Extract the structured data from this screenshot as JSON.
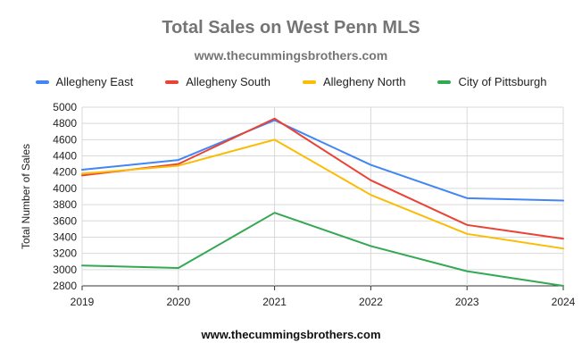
{
  "chart_data": {
    "type": "line",
    "title": "Total Sales on West Penn MLS",
    "subtitle": "www.thecummingsbrothers.com",
    "xlabel": "www.thecummingsbrothers.com",
    "ylabel": "Total Number of Sales",
    "categories": [
      "2019",
      "2020",
      "2021",
      "2022",
      "2023",
      "2024"
    ],
    "ylim": [
      2800,
      5000
    ],
    "yticks": [
      "2800",
      "3000",
      "3200",
      "3400",
      "3600",
      "3800",
      "4000",
      "4200",
      "4400",
      "4600",
      "4800",
      "5000"
    ],
    "grid": true,
    "legend_position": "top",
    "series": [
      {
        "name": "Allegheny East",
        "color": "#4285f4",
        "values": [
          4230,
          4350,
          4840,
          4290,
          3880,
          3850
        ]
      },
      {
        "name": "Allegheny South",
        "color": "#ea4335",
        "values": [
          4160,
          4300,
          4860,
          4100,
          3550,
          3380
        ]
      },
      {
        "name": "Allegheny North",
        "color": "#fbbc04",
        "values": [
          4180,
          4280,
          4600,
          3920,
          3440,
          3260
        ]
      },
      {
        "name": "City of Pittsburgh",
        "color": "#34a853",
        "values": [
          3050,
          3020,
          3700,
          3290,
          2980,
          2800
        ]
      }
    ]
  }
}
